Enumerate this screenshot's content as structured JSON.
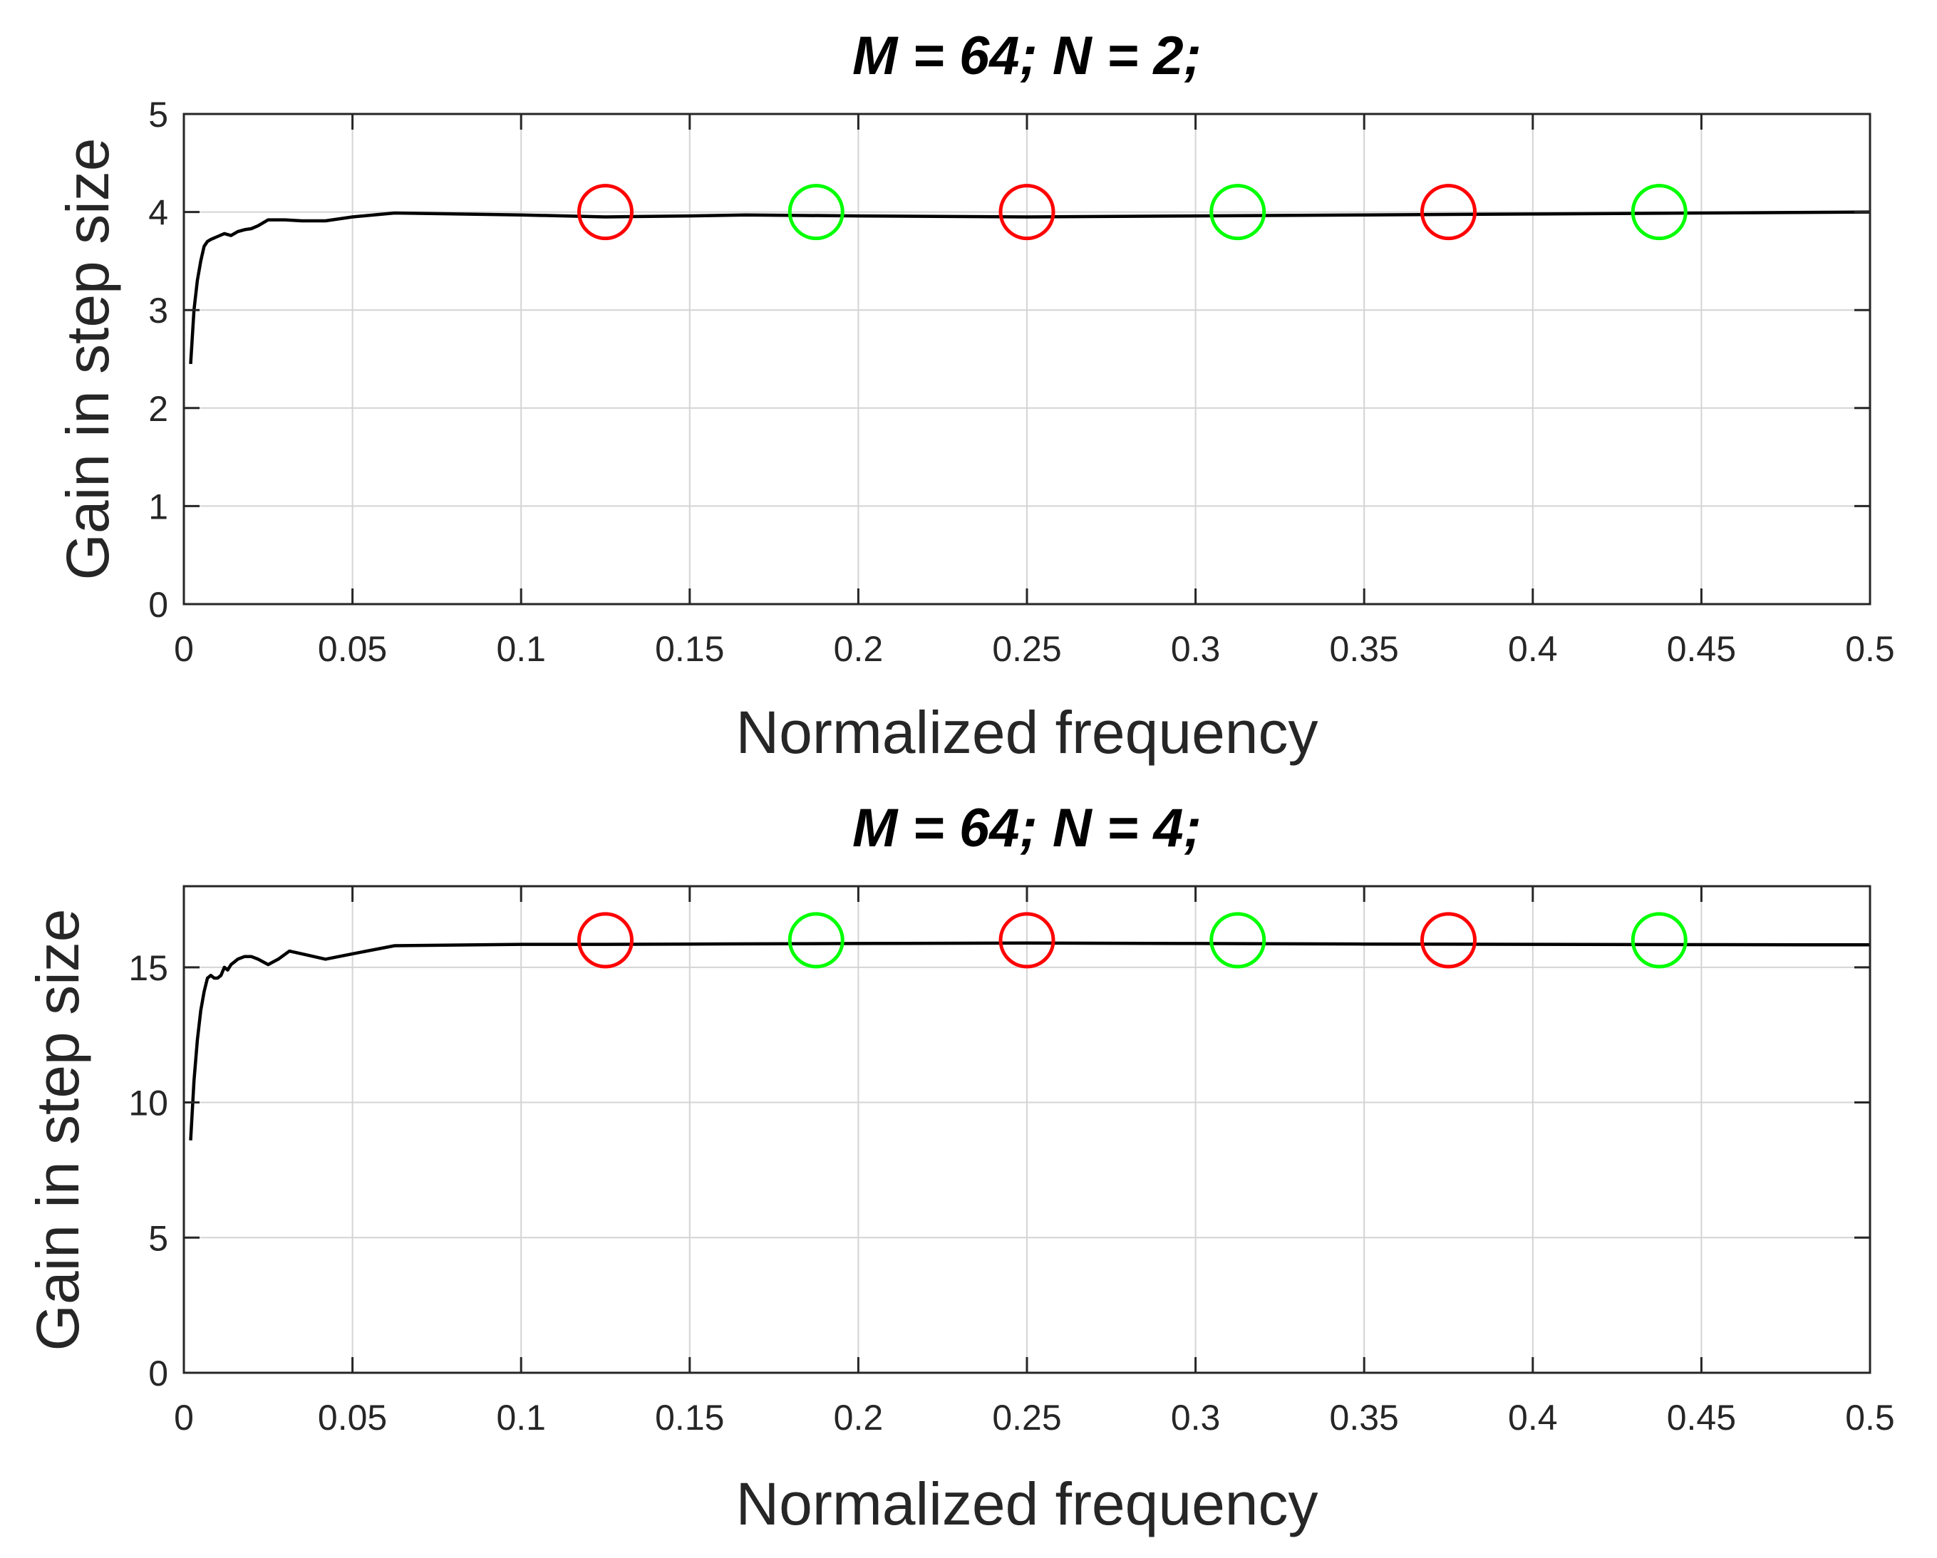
{
  "chart_data": [
    {
      "type": "line",
      "title": "M = 64; N = 2;",
      "xlabel": "Normalized frequency",
      "ylabel": "Gain in step size",
      "xlim": [
        0,
        0.5
      ],
      "ylim": [
        0,
        5
      ],
      "grid": true,
      "xticks": [
        0,
        0.05,
        0.1,
        0.15,
        0.2,
        0.25,
        0.3,
        0.35,
        0.4,
        0.45,
        0.5
      ],
      "xtick_labels": [
        "0",
        "0.05",
        "0.1",
        "0.15",
        "0.2",
        "0.25",
        "0.3",
        "0.35",
        "0.4",
        "0.45",
        "0.5"
      ],
      "yticks": [
        0,
        1,
        2,
        3,
        4,
        5
      ],
      "ytick_labels": [
        "0",
        "1",
        "2",
        "3",
        "4",
        "5"
      ],
      "series": [
        {
          "name": "gain",
          "color": "#000000",
          "x": [
            0.002,
            0.003,
            0.004,
            0.005,
            0.006,
            0.007,
            0.008,
            0.01,
            0.012,
            0.014,
            0.016,
            0.018,
            0.02,
            0.022,
            0.025,
            0.03,
            0.035,
            0.042,
            0.05,
            0.0625,
            0.1,
            0.125,
            0.15,
            0.1667,
            0.2,
            0.25,
            0.3,
            0.35,
            0.4,
            0.45,
            0.5
          ],
          "y": [
            2.45,
            3.0,
            3.3,
            3.5,
            3.65,
            3.7,
            3.72,
            3.75,
            3.78,
            3.76,
            3.8,
            3.82,
            3.83,
            3.86,
            3.92,
            3.92,
            3.91,
            3.91,
            3.95,
            3.99,
            3.97,
            3.95,
            3.96,
            3.97,
            3.96,
            3.95,
            3.96,
            3.97,
            3.98,
            3.99,
            4.0
          ]
        }
      ],
      "markers": [
        {
          "x": 0.125,
          "y": 4.0,
          "color": "#ff0000"
        },
        {
          "x": 0.1875,
          "y": 4.0,
          "color": "#00ff00"
        },
        {
          "x": 0.25,
          "y": 4.0,
          "color": "#ff0000"
        },
        {
          "x": 0.3125,
          "y": 4.0,
          "color": "#00ff00"
        },
        {
          "x": 0.375,
          "y": 4.0,
          "color": "#ff0000"
        },
        {
          "x": 0.4375,
          "y": 4.0,
          "color": "#00ff00"
        }
      ]
    },
    {
      "type": "line",
      "title": "M = 64; N = 4;",
      "xlabel": "Normalized frequency",
      "ylabel": "Gain in step size",
      "xlim": [
        0,
        0.5
      ],
      "ylim": [
        0,
        18
      ],
      "grid": true,
      "xticks": [
        0,
        0.05,
        0.1,
        0.15,
        0.2,
        0.25,
        0.3,
        0.35,
        0.4,
        0.45,
        0.5
      ],
      "xtick_labels": [
        "0",
        "0.05",
        "0.1",
        "0.15",
        "0.2",
        "0.25",
        "0.3",
        "0.35",
        "0.4",
        "0.45",
        "0.5"
      ],
      "yticks": [
        0,
        5,
        10,
        15
      ],
      "ytick_labels": [
        "0",
        "5",
        "10",
        "15"
      ],
      "series": [
        {
          "name": "gain",
          "color": "#000000",
          "x": [
            0.002,
            0.003,
            0.004,
            0.005,
            0.006,
            0.007,
            0.008,
            0.009,
            0.01,
            0.011,
            0.012,
            0.013,
            0.014,
            0.015,
            0.016,
            0.018,
            0.02,
            0.022,
            0.025,
            0.028,
            0.0313,
            0.035,
            0.042,
            0.05,
            0.0625,
            0.1,
            0.125,
            0.15,
            0.2,
            0.25,
            0.3,
            0.35,
            0.4,
            0.45,
            0.5
          ],
          "y": [
            8.6,
            10.8,
            12.3,
            13.4,
            14.1,
            14.6,
            14.7,
            14.6,
            14.6,
            14.7,
            15.0,
            14.9,
            15.1,
            15.2,
            15.3,
            15.4,
            15.4,
            15.3,
            15.1,
            15.3,
            15.6,
            15.5,
            15.3,
            15.5,
            15.8,
            15.85,
            15.85,
            15.86,
            15.88,
            15.9,
            15.88,
            15.86,
            15.85,
            15.84,
            15.83
          ]
        }
      ],
      "markers": [
        {
          "x": 0.125,
          "y": 16.0,
          "color": "#ff0000"
        },
        {
          "x": 0.1875,
          "y": 16.0,
          "color": "#00ff00"
        },
        {
          "x": 0.25,
          "y": 16.0,
          "color": "#ff0000"
        },
        {
          "x": 0.3125,
          "y": 16.0,
          "color": "#00ff00"
        },
        {
          "x": 0.375,
          "y": 16.0,
          "color": "#ff0000"
        },
        {
          "x": 0.4375,
          "y": 16.0,
          "color": "#00ff00"
        }
      ]
    }
  ]
}
